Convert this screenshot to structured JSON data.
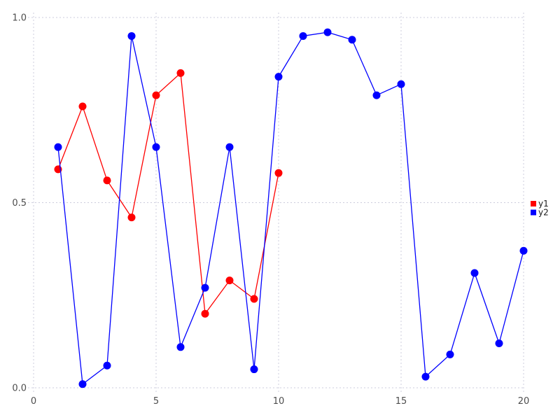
{
  "chart_data": {
    "type": "line",
    "title": "",
    "xlabel": "",
    "ylabel": "",
    "xlim": [
      0,
      20
    ],
    "ylim": [
      0.0,
      1.0
    ],
    "x_ticks": [
      0,
      5,
      10,
      15,
      20
    ],
    "x_tick_labels": [
      "0",
      "5",
      "10",
      "15",
      "20"
    ],
    "y_ticks": [
      0.0,
      0.5,
      1.0
    ],
    "y_tick_labels": [
      "0.0",
      "0.5",
      "1.0"
    ],
    "grid": "dotted",
    "legend_position": "right-outside",
    "series": [
      {
        "name": "y1",
        "color": "#ff0000",
        "marker": "circle",
        "x": [
          1,
          2,
          3,
          4,
          5,
          6,
          7,
          8,
          9,
          10
        ],
        "y": [
          0.59,
          0.76,
          0.56,
          0.46,
          0.79,
          0.85,
          0.2,
          0.29,
          0.24,
          0.58
        ]
      },
      {
        "name": "y2",
        "color": "#0000ff",
        "marker": "circle",
        "x": [
          1,
          2,
          3,
          4,
          5,
          6,
          7,
          8,
          9,
          10,
          11,
          12,
          13,
          14,
          15,
          16,
          17,
          18,
          19,
          20
        ],
        "y": [
          0.65,
          0.01,
          0.06,
          0.95,
          0.65,
          0.11,
          0.27,
          0.65,
          0.05,
          0.84,
          0.95,
          0.96,
          0.94,
          0.79,
          0.82,
          0.03,
          0.09,
          0.31,
          0.12,
          0.37
        ]
      }
    ],
    "colors": {
      "grid": "#ccccdd",
      "tick_label": "#4d4d4d",
      "legend_text": "#1a1a1a",
      "background": "#ffffff"
    }
  },
  "legend": {
    "items": [
      {
        "label": "y1",
        "color": "#ff0000"
      },
      {
        "label": "y2",
        "color": "#0000ff"
      }
    ]
  }
}
